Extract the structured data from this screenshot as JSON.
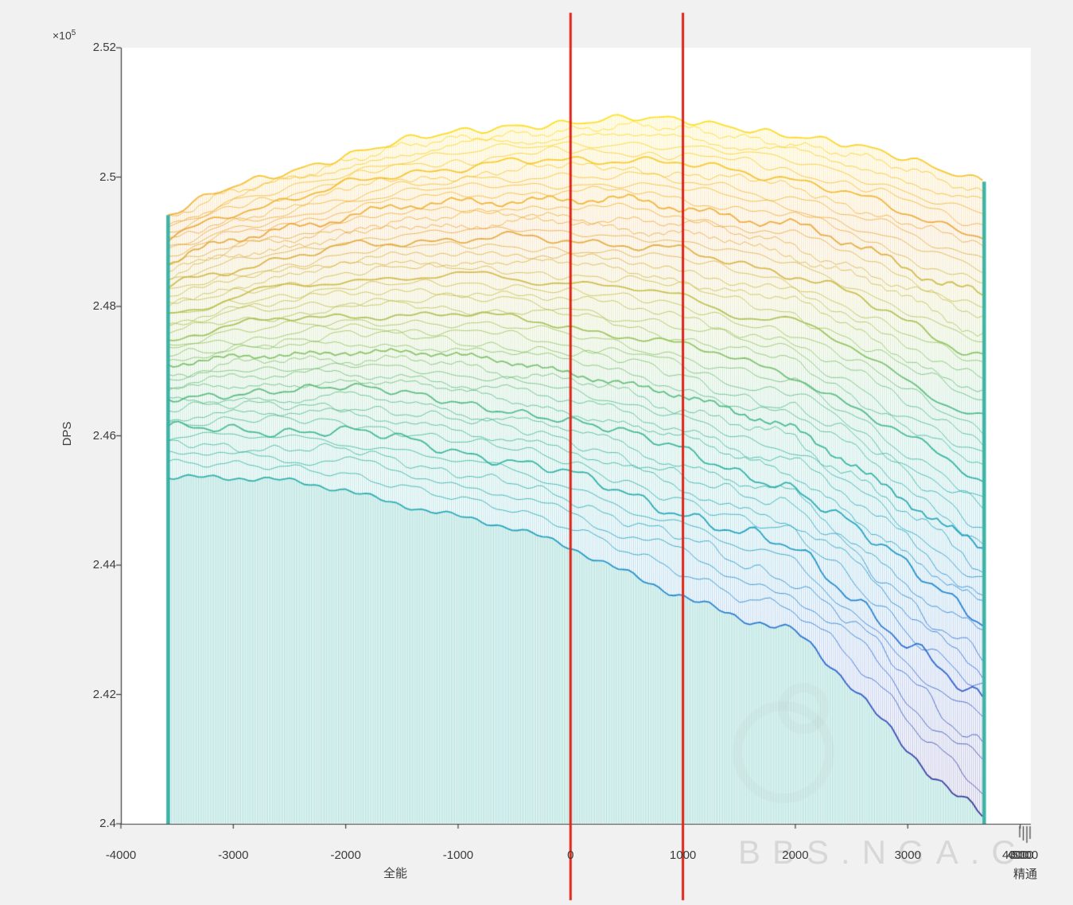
{
  "figure": {
    "background_color": "#f1f1f1",
    "plot_background": "#ffffff",
    "watermark_text": "BBS.NGA.C"
  },
  "chart_data": {
    "type": "3d-mesh-surface-waterfall",
    "title": "",
    "ylabel": "DPS",
    "xlabel": "全能",
    "x2label": "精通",
    "y_exponent_prefix": "×10",
    "y_exponent": "5",
    "ylim": [
      2.4,
      2.52
    ],
    "xlim": [
      -4000,
      4095
    ],
    "grid": false,
    "y_ticks": [
      {
        "v": 2.4,
        "label": "2.4"
      },
      {
        "v": 2.42,
        "label": "2.42"
      },
      {
        "v": 2.44,
        "label": "2.44"
      },
      {
        "v": 2.46,
        "label": "2.46"
      },
      {
        "v": 2.48,
        "label": "2.48"
      },
      {
        "v": 2.5,
        "label": "2.5"
      },
      {
        "v": 2.52,
        "label": "2.52"
      }
    ],
    "x_ticks": [
      {
        "v": -4000,
        "label": "-4000"
      },
      {
        "v": -3000,
        "label": "-3000"
      },
      {
        "v": -2000,
        "label": "-2000"
      },
      {
        "v": -1000,
        "label": "-1000"
      },
      {
        "v": 0,
        "label": "0"
      },
      {
        "v": 1000,
        "label": "1000"
      },
      {
        "v": 2000,
        "label": "2000"
      },
      {
        "v": 3000,
        "label": "3000"
      },
      {
        "v": 4000,
        "label": "4000"
      }
    ],
    "x2_ticks": [
      {
        "x": 3958,
        "label": "4000"
      },
      {
        "x": 4042,
        "label": "5000"
      }
    ],
    "red_lines_x": [
      0,
      1000
    ],
    "mesh_x_range": [
      -3580,
      3680
    ],
    "n_layers": 46,
    "surface_envelope": {
      "x": [
        -3580,
        -3000,
        -2500,
        -2000,
        -1500,
        -1000,
        -500,
        0,
        500,
        1000,
        1500,
        2000,
        2500,
        3000,
        3400,
        3680
      ],
      "top_dps_1e5": [
        2.494,
        2.4985,
        2.501,
        2.5035,
        2.5055,
        2.5068,
        2.508,
        2.5086,
        2.509,
        2.5086,
        2.5078,
        2.5066,
        2.5048,
        2.5026,
        2.5008,
        2.4996
      ],
      "bottom_dps_1e5": [
        2.454,
        2.4532,
        2.4526,
        2.4517,
        2.4498,
        2.4476,
        2.4452,
        2.4425,
        2.4392,
        2.4357,
        2.4315,
        2.429,
        2.4215,
        2.4123,
        2.4052,
        2.401
      ]
    },
    "colormap_value_range": [
      2.4,
      2.512
    ],
    "colormap_stops": [
      [
        2.4,
        "#342d8c"
      ],
      [
        2.41,
        "#3540a8"
      ],
      [
        2.424,
        "#2b63d2"
      ],
      [
        2.436,
        "#1b86cf"
      ],
      [
        2.446,
        "#1da3bd"
      ],
      [
        2.456,
        "#2eb4a0"
      ],
      [
        2.466,
        "#55bb82"
      ],
      [
        2.474,
        "#8fc45f"
      ],
      [
        2.482,
        "#c9bf4a"
      ],
      [
        2.492,
        "#eca63c"
      ],
      [
        2.498,
        "#f4b92e"
      ],
      [
        2.505,
        "#fad424"
      ],
      [
        2.512,
        "#ffe81a"
      ]
    ],
    "colors": {
      "red_line": "#dd2418",
      "drop_line": "#4ab9b1",
      "edge_wall": "#2fae9f",
      "axis": "#3c3c3c",
      "tick_text": "#3c3c3c"
    }
  }
}
